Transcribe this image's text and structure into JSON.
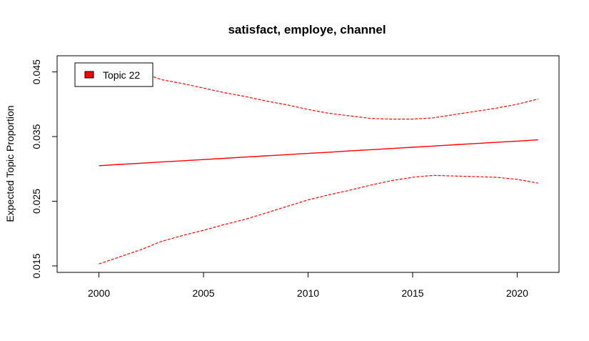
{
  "chart_data": {
    "type": "line",
    "title": "satisfact, employe, channel",
    "xlabel": "",
    "ylabel": "Expected Topic Proportion",
    "xlim": [
      1998,
      2022
    ],
    "ylim": [
      0.014,
      0.0475
    ],
    "x_ticks": [
      2000,
      2005,
      2010,
      2015,
      2020
    ],
    "x_tick_labels": [
      "2000",
      "2005",
      "2010",
      "2015",
      "2020"
    ],
    "y_ticks": [
      0.015,
      0.025,
      0.035,
      0.045
    ],
    "y_tick_labels": [
      "0.015",
      "0.025",
      "0.035",
      "0.045"
    ],
    "grid": false,
    "legend": {
      "placement": "top-left",
      "entries": [
        {
          "label": "Topic 22",
          "color": "#ff0000"
        }
      ]
    },
    "x": [
      2000,
      2001,
      2002,
      2003,
      2004,
      2005,
      2006,
      2007,
      2008,
      2009,
      2010,
      2011,
      2012,
      2013,
      2014,
      2015,
      2016,
      2017,
      2018,
      2019,
      2020,
      2021
    ],
    "series": [
      {
        "name": "Topic 22",
        "role": "estimate",
        "style": "solid",
        "color": "#ff0000",
        "values": [
          0.0305,
          0.03069,
          0.03088,
          0.03107,
          0.03126,
          0.03145,
          0.03164,
          0.03183,
          0.03202,
          0.03221,
          0.0324,
          0.03259,
          0.03278,
          0.03297,
          0.03316,
          0.03335,
          0.03354,
          0.03373,
          0.03392,
          0.03411,
          0.0343,
          0.0345
        ]
      },
      {
        "role": "upper-ci",
        "style": "dashed",
        "color": "#ff0000",
        "values": [
          0.0458,
          0.0454,
          0.0449,
          0.0438,
          0.0432,
          0.0425,
          0.0418,
          0.0412,
          0.0405,
          0.0399,
          0.0392,
          0.0386,
          0.0382,
          0.0378,
          0.0377,
          0.0377,
          0.0379,
          0.0384,
          0.0389,
          0.0394,
          0.04,
          0.0408
        ]
      },
      {
        "role": "lower-ci",
        "style": "dashed",
        "color": "#ff0000",
        "values": [
          0.0153,
          0.0164,
          0.0175,
          0.0188,
          0.0197,
          0.0205,
          0.0214,
          0.0222,
          0.0232,
          0.0242,
          0.0252,
          0.026,
          0.0267,
          0.0275,
          0.0282,
          0.0287,
          0.029,
          0.0289,
          0.0288,
          0.0287,
          0.0284,
          0.0278
        ]
      }
    ]
  }
}
